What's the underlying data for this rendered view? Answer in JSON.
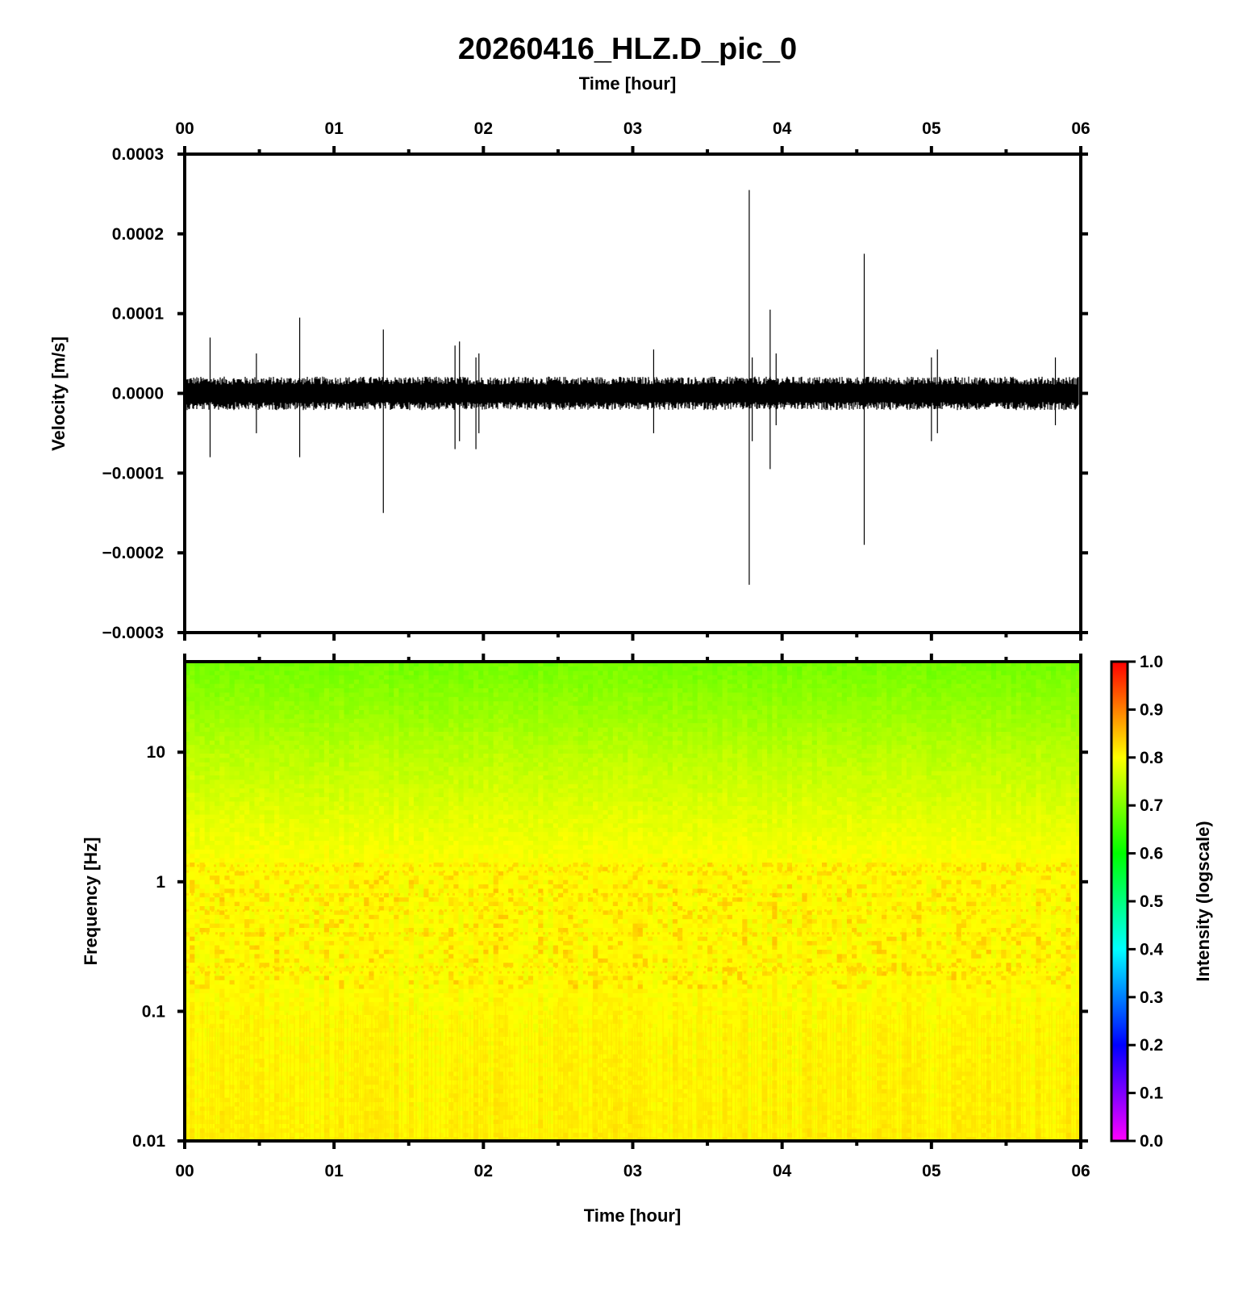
{
  "chart_data": [
    {
      "type": "line",
      "title": "20260416_HLZ.D_pic_0",
      "xlabel_top": "Time [hour]",
      "ylabel": "Velocity [m/s]",
      "x_unit": "hour",
      "xlim": [
        0,
        6
      ],
      "ylim": [
        -0.0003,
        0.0003
      ],
      "x_ticks": [
        "00",
        "01",
        "02",
        "03",
        "04",
        "05",
        "06"
      ],
      "y_ticks": [
        "0.0003",
        "0.0002",
        "0.0001",
        "0.0000",
        "−0.0001",
        "−0.0002",
        "−0.0003"
      ],
      "y_tick_values": [
        0.0003,
        0.0002,
        0.0001,
        0.0,
        -0.0001,
        -0.0002,
        -0.0003
      ],
      "noise_band_amplitude": 2e-05,
      "line_color": "#000000",
      "spikes": [
        {
          "t": 0.17,
          "pos": 7e-05,
          "neg": -8e-05
        },
        {
          "t": 0.48,
          "pos": 5e-05,
          "neg": -5e-05
        },
        {
          "t": 0.77,
          "pos": 9.5e-05,
          "neg": -8e-05
        },
        {
          "t": 1.33,
          "pos": 8e-05,
          "neg": -0.00015
        },
        {
          "t": 1.81,
          "pos": 6e-05,
          "neg": -7e-05
        },
        {
          "t": 1.84,
          "pos": 6.5e-05,
          "neg": -6e-05
        },
        {
          "t": 1.95,
          "pos": 4.5e-05,
          "neg": -7e-05
        },
        {
          "t": 1.97,
          "pos": 5e-05,
          "neg": -5e-05
        },
        {
          "t": 3.14,
          "pos": 5.5e-05,
          "neg": -5e-05
        },
        {
          "t": 3.78,
          "pos": 0.000255,
          "neg": -0.00024
        },
        {
          "t": 3.8,
          "pos": 4.5e-05,
          "neg": -6e-05
        },
        {
          "t": 3.92,
          "pos": 0.000105,
          "neg": -9.5e-05
        },
        {
          "t": 3.96,
          "pos": 5e-05,
          "neg": -4e-05
        },
        {
          "t": 4.55,
          "pos": 0.000175,
          "neg": -0.00019
        },
        {
          "t": 5.0,
          "pos": 4.5e-05,
          "neg": -6e-05
        },
        {
          "t": 5.04,
          "pos": 5.5e-05,
          "neg": -5e-05
        },
        {
          "t": 5.83,
          "pos": 4.5e-05,
          "neg": -4e-05
        }
      ]
    },
    {
      "type": "heatmap",
      "xlabel": "Time [hour]",
      "ylabel": "Frequency [Hz]",
      "x_unit": "hour",
      "xlim": [
        0,
        6
      ],
      "ylim": [
        0.01,
        50
      ],
      "y_scale": "log",
      "x_ticks": [
        "00",
        "01",
        "02",
        "03",
        "04",
        "05",
        "06"
      ],
      "y_ticks": [
        "10",
        "1",
        "0.1",
        "0.01"
      ],
      "y_tick_values": [
        10,
        1,
        0.1,
        0.01
      ],
      "colorbar": {
        "label": "Intensity (logscale)",
        "range": [
          0.0,
          1.0
        ],
        "ticks": [
          "1.0",
          "0.9",
          "0.8",
          "0.7",
          "0.6",
          "0.5",
          "0.4",
          "0.3",
          "0.2",
          "0.1",
          "0.0"
        ],
        "tick_values": [
          1.0,
          0.9,
          0.8,
          0.7,
          0.6,
          0.5,
          0.4,
          0.3,
          0.2,
          0.1,
          0.0
        ],
        "colors": [
          "#ff00ff",
          "#0000ff",
          "#00ffff",
          "#00ff00",
          "#ffff00",
          "#ff0000"
        ]
      },
      "intensity_profile": [
        {
          "freq": 50,
          "intensity": 0.69
        },
        {
          "freq": 20,
          "intensity": 0.72
        },
        {
          "freq": 10,
          "intensity": 0.745
        },
        {
          "freq": 3,
          "intensity": 0.78
        },
        {
          "freq": 1.3,
          "intensity": 0.8
        },
        {
          "freq": 0.2,
          "intensity": 0.8
        },
        {
          "freq": 0.01,
          "intensity": 0.81
        }
      ]
    }
  ]
}
